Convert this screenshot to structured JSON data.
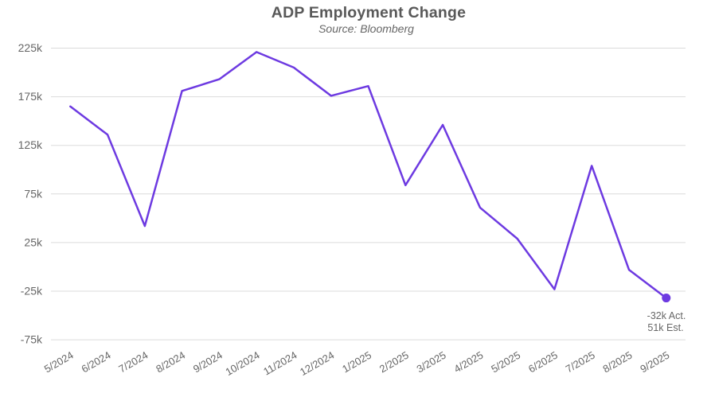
{
  "chart_data": {
    "type": "line",
    "title": "ADP Employment Change",
    "subtitle": "Source: Bloomberg",
    "categories": [
      "5/2024",
      "6/2024",
      "7/2024",
      "8/2024",
      "9/2024",
      "10/2024",
      "11/2024",
      "12/2024",
      "1/2025",
      "2/2025",
      "3/2025",
      "4/2025",
      "5/2025",
      "6/2025",
      "7/2025",
      "8/2025",
      "9/2025"
    ],
    "series": [
      {
        "name": "ADP Employment Change (thousands)",
        "values": [
          165,
          136,
          42,
          181,
          193,
          221,
          205,
          176,
          186,
          84,
          146,
          61,
          29,
          -23,
          104,
          -3,
          -32
        ]
      }
    ],
    "unit": "k",
    "xlabel": "",
    "ylabel": "",
    "ylim": [
      -75,
      225
    ],
    "y_ticks": [
      {
        "value": 225,
        "label": "225k"
      },
      {
        "value": 175,
        "label": "175k"
      },
      {
        "value": 125,
        "label": "125k"
      },
      {
        "value": 75,
        "label": "75k"
      },
      {
        "value": 25,
        "label": "25k"
      },
      {
        "value": -25,
        "label": "-25k"
      },
      {
        "value": -75,
        "label": "-75k"
      }
    ],
    "grid": "horizontal-only",
    "legend": "none",
    "annotation": {
      "line1": "-32k Act.",
      "line2": "51k Est.",
      "attached_to_category": "9/2025"
    },
    "last_point_marker": true,
    "colors": {
      "line": "#6D3AE1",
      "marker": "#6D3AE1",
      "grid": "#DBDBDB",
      "title": "#595959",
      "subtitle": "#666666",
      "tick_labels": "#666666",
      "annotation": "#666666",
      "background": "#FFFFFF"
    }
  }
}
